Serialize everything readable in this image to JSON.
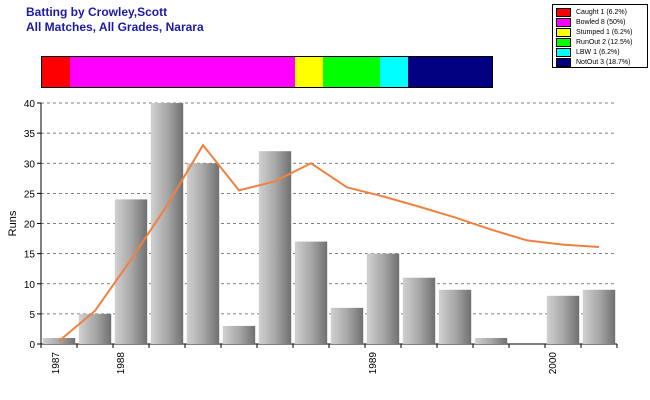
{
  "chart_data": {
    "type": "bar",
    "title": "Batting by Crowley,Scott",
    "subtitle": "All Matches, All Grades, Narara",
    "ylabel": "Runs",
    "xlabel": "",
    "ylim": [
      0,
      40
    ],
    "yticks": [
      0,
      5,
      10,
      15,
      20,
      25,
      30,
      35,
      40
    ],
    "grid": true,
    "legend_position": "top-right",
    "x_ticks": [
      "1987",
      "1988",
      "1989",
      "2000"
    ],
    "bars": [
      1,
      5,
      24,
      40,
      30,
      3,
      32,
      17,
      6,
      15,
      11,
      9,
      1,
      0,
      8,
      9
    ],
    "trend_line": [
      0.5,
      5.5,
      14,
      23,
      33,
      25.5,
      27,
      30,
      26,
      24.5,
      22.8,
      21,
      19,
      17.2,
      16.5,
      16.1
    ],
    "dismissals": [
      {
        "label": "Caught 1 (6.2%)",
        "count": 1,
        "percent": 6.2,
        "color": "#ff0000"
      },
      {
        "label": "Bowled 8 (50%)",
        "count": 8,
        "percent": 50,
        "color": "#ff00ff"
      },
      {
        "label": "Stumped 1 (6.2%)",
        "count": 1,
        "percent": 6.2,
        "color": "#ffff00"
      },
      {
        "label": "RunOut 2 (12.5%)",
        "count": 2,
        "percent": 12.5,
        "color": "#00ff00"
      },
      {
        "label": "LBW 1 (6.2%)",
        "count": 1,
        "percent": 6.2,
        "color": "#00ffff"
      },
      {
        "label": "NotOut 3 (18.7%)",
        "count": 3,
        "percent": 18.7,
        "color": "#000080"
      }
    ],
    "colors": {
      "bar": "#9a9a9a",
      "trend": "#f08040",
      "title": "#1a1aa6"
    }
  }
}
